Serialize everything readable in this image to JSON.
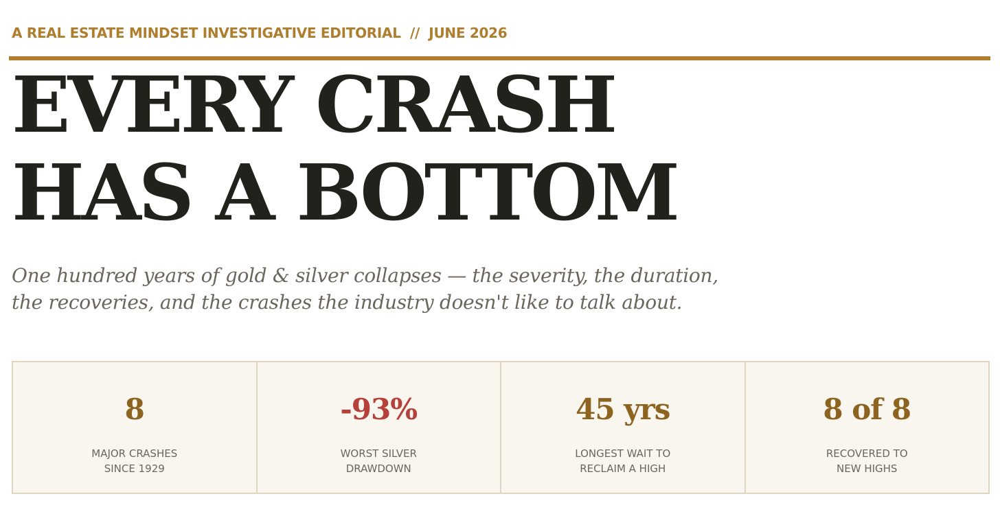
{
  "header": {
    "kicker": "A REAL ESTATE MINDSET INVESTIGATIVE EDITORIAL  //  JUNE 2026",
    "title_lines": [
      "EVERY CRASH",
      "HAS A BOTTOM"
    ],
    "subtitle_lines": [
      "One hundred years of gold & silver collapses — the severity, the duration,",
      "the recoveries, and the crashes the industry doesn't like to talk about."
    ]
  },
  "stats": [
    {
      "value": "8",
      "color": "#8c6420",
      "label_lines": [
        "MAJOR CRASHES",
        "SINCE 1929"
      ]
    },
    {
      "value": "-93%",
      "color": "#b5413a",
      "label_lines": [
        "WORST SILVER",
        "DRAWDOWN"
      ]
    },
    {
      "value": "45 yrs",
      "color": "#8c6420",
      "label_lines": [
        "LONGEST WAIT TO",
        "RECLAIM A HIGH"
      ]
    },
    {
      "value": "8 of 8",
      "color": "#8c6420",
      "label_lines": [
        "RECOVERED TO",
        "NEW HIGHS"
      ]
    }
  ]
}
